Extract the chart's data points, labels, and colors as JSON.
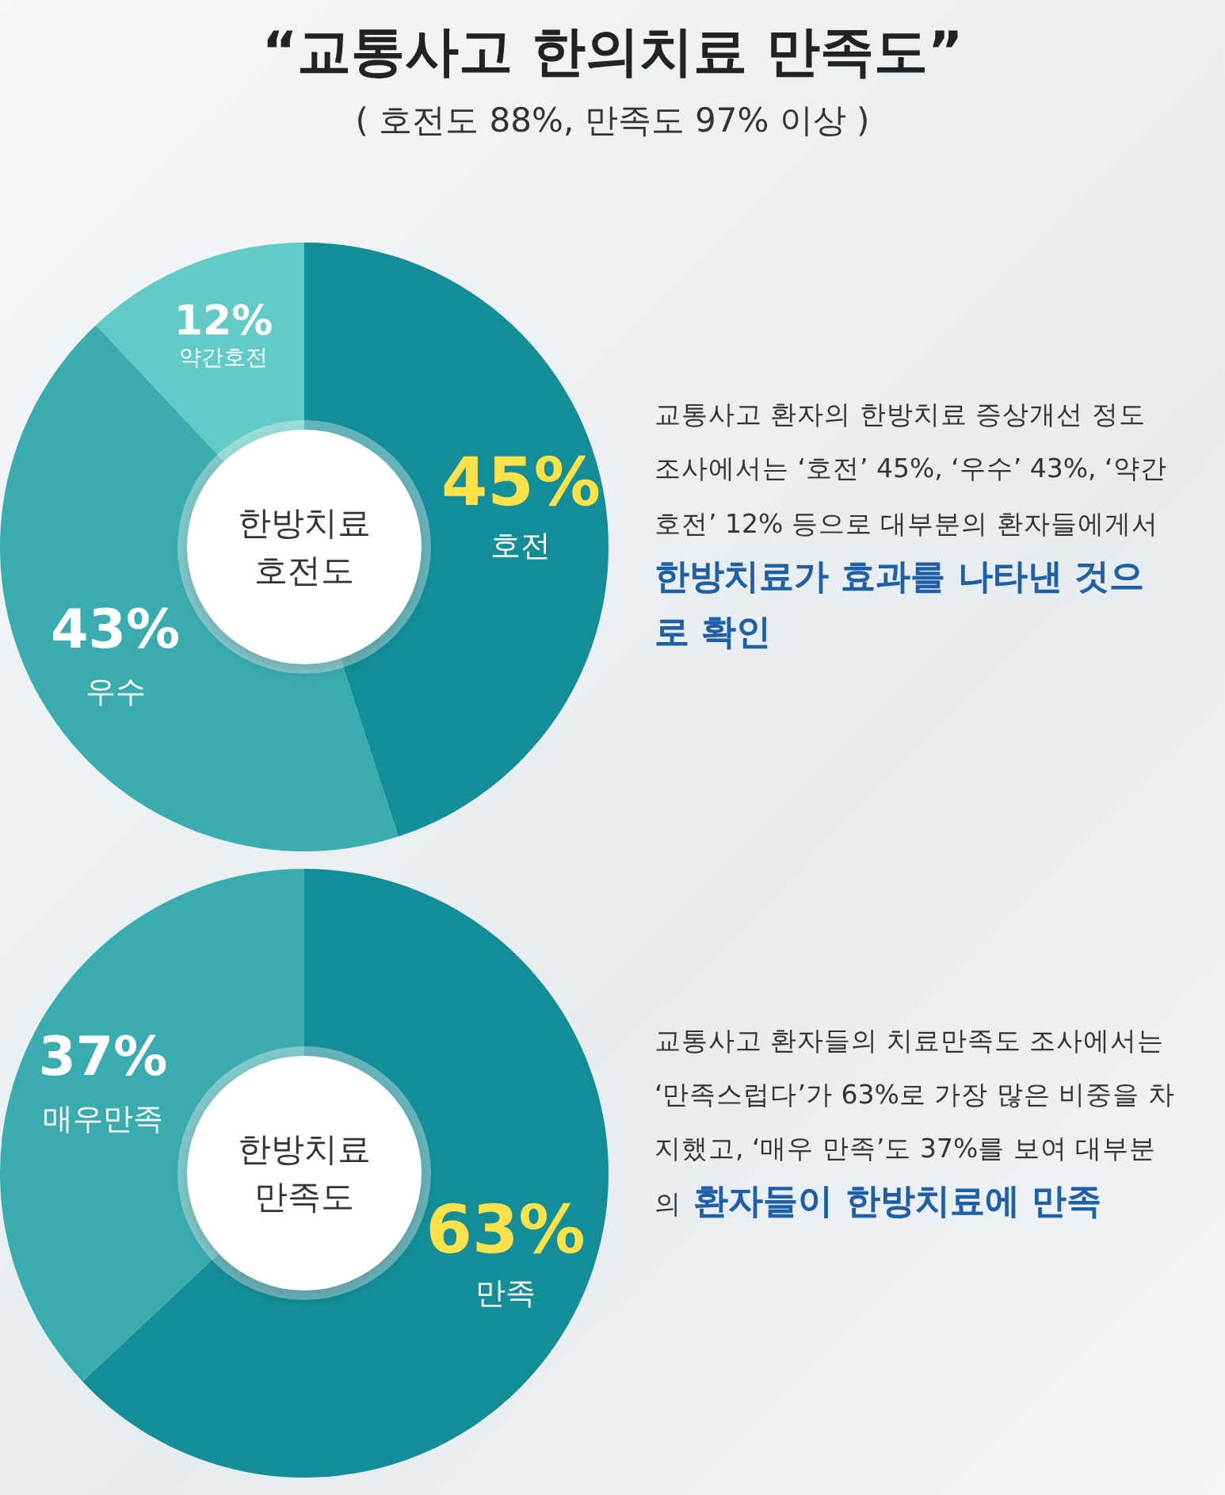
{
  "chart_data": [
    {
      "type": "donut",
      "title": "“교통사고 한의치료 만족도”",
      "subtitle": "( 호전도 88%, 만족도 97% 이상 )",
      "categories": [
        "호전",
        "우수",
        "약간호전"
      ],
      "values": [
        45,
        43,
        12
      ],
      "value_labels": [
        "45%",
        "43%",
        "12%"
      ],
      "colors": [
        "#138d97",
        "#3aacb0",
        "#62cbc7"
      ],
      "annotations": [
        "한방치료\n호전도",
        "교통사고 환자의 한방치료 증상개선 정도 조사에서는 ‘호전’ 45%, ‘우수’ 43%, ‘약간 호전’ 12% 등으로 대부분의 환자들에게서",
        "한방치료가 효과를 나타낸 것으로 확인"
      ]
    },
    {
      "type": "donut",
      "categories": [
        "만족",
        "매우만족"
      ],
      "values": [
        63,
        37
      ],
      "value_labels": [
        "63%",
        "37%"
      ],
      "colors": [
        "#138d97",
        "#3aacb0"
      ],
      "annotations": [
        "한방치료\n만족도",
        "교통사고 환자들의 치료만족도 조사에서는 ‘만족스럽다’가 63%로 가장 많은 비중을 차지했고, ‘매우 만족’도 37%를 보여 대부분의",
        "환자들이 한방치료에 만족"
      ]
    }
  ]
}
